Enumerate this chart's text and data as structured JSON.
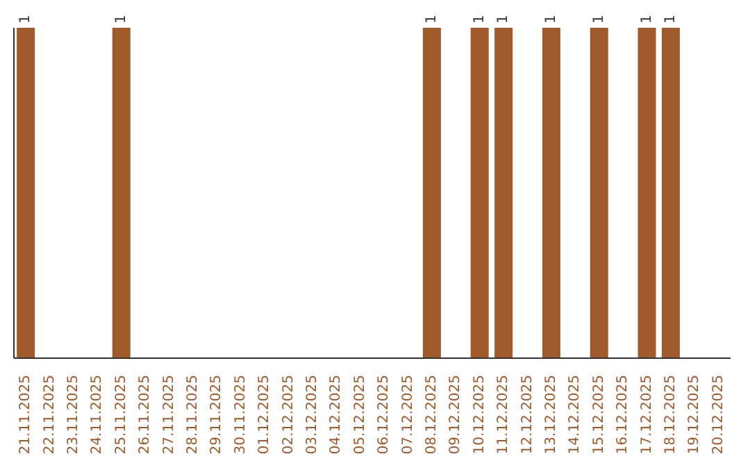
{
  "chart_data": {
    "type": "bar",
    "categories": [
      "21.11.2025",
      "22.11.2025",
      "23.11.2025",
      "24.11.2025",
      "25.11.2025",
      "26.11.2025",
      "27.11.2025",
      "28.11.2025",
      "29.11.2025",
      "30.11.2025",
      "01.12.2025",
      "02.12.2025",
      "03.12.2025",
      "04.12.2025",
      "05.12.2025",
      "06.12.2025",
      "07.12.2025",
      "08.12.2025",
      "09.12.2025",
      "10.12.2025",
      "11.12.2025",
      "12.12.2025",
      "13.12.2025",
      "14.12.2025",
      "15.12.2025",
      "16.12.2025",
      "17.12.2025",
      "18.12.2025",
      "19.12.2025",
      "20.12.2025"
    ],
    "values": [
      1,
      0,
      0,
      0,
      1,
      0,
      0,
      0,
      0,
      0,
      0,
      0,
      0,
      0,
      0,
      0,
      0,
      1,
      0,
      1,
      1,
      0,
      1,
      0,
      1,
      0,
      1,
      1,
      0,
      0
    ],
    "value_labels": [
      "1",
      null,
      null,
      null,
      "1",
      null,
      null,
      null,
      null,
      null,
      null,
      null,
      null,
      null,
      null,
      null,
      null,
      "1",
      null,
      "1",
      "1",
      null,
      "1",
      null,
      "1",
      null,
      "1",
      "1",
      null,
      null
    ],
    "color": "#a0592a",
    "grid": false,
    "legend": false
  }
}
